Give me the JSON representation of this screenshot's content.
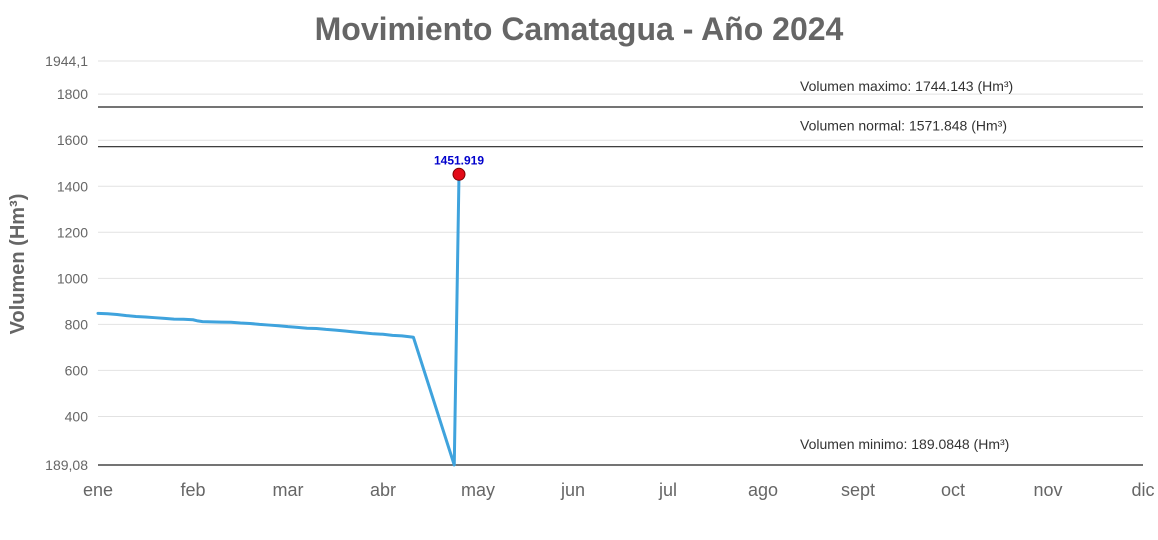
{
  "chart_data": {
    "type": "line",
    "title": "Movimiento Camatagua - Año 2024",
    "ylabel": "Volumen (Hm³)",
    "xlabel": "",
    "ylim": [
      189.08,
      1944.1
    ],
    "y_tick_labels": [
      {
        "value": 1944.1,
        "label": "1944,1"
      },
      {
        "value": 1800,
        "label": "1800"
      },
      {
        "value": 1600,
        "label": "1600"
      },
      {
        "value": 1400,
        "label": "1400"
      },
      {
        "value": 1200,
        "label": "1200"
      },
      {
        "value": 1000,
        "label": "1000"
      },
      {
        "value": 800,
        "label": "800"
      },
      {
        "value": 600,
        "label": "600"
      },
      {
        "value": 400,
        "label": "400"
      },
      {
        "value": 189.08,
        "label": "189,08"
      }
    ],
    "gridlines": [
      1944.1,
      1800,
      1600,
      1400,
      1200,
      1000,
      800,
      600,
      400
    ],
    "months": [
      "ene",
      "feb",
      "mar",
      "abr",
      "may",
      "jun",
      "jul",
      "ago",
      "sept",
      "oct",
      "nov",
      "dic"
    ],
    "grid": true,
    "series": [
      {
        "color": "#3fa3dd",
        "points": [
          [
            0,
            848
          ],
          [
            0.1,
            846
          ],
          [
            0.2,
            843
          ],
          [
            0.3,
            838
          ],
          [
            0.4,
            834
          ],
          [
            0.5,
            832
          ],
          [
            0.6,
            829
          ],
          [
            0.7,
            826
          ],
          [
            0.8,
            823
          ],
          [
            0.9,
            822
          ],
          [
            1.0,
            820
          ],
          [
            1.05,
            815
          ],
          [
            1.1,
            812
          ],
          [
            1.2,
            811
          ],
          [
            1.3,
            810
          ],
          [
            1.4,
            809
          ],
          [
            1.5,
            806
          ],
          [
            1.6,
            804
          ],
          [
            1.7,
            800
          ],
          [
            1.8,
            797
          ],
          [
            1.9,
            794
          ],
          [
            2.0,
            790
          ],
          [
            2.1,
            787
          ],
          [
            2.2,
            783
          ],
          [
            2.3,
            782
          ],
          [
            2.4,
            778
          ],
          [
            2.5,
            775
          ],
          [
            2.6,
            771
          ],
          [
            2.7,
            767
          ],
          [
            2.8,
            763
          ],
          [
            2.9,
            759
          ],
          [
            3.0,
            757
          ],
          [
            3.1,
            752
          ],
          [
            3.2,
            750
          ],
          [
            3.3,
            745
          ],
          [
            3.32,
            744
          ],
          [
            3.75,
            189.08
          ],
          [
            3.8,
            1451.919
          ]
        ]
      }
    ],
    "highlight_point": {
      "x": 3.8,
      "y": 1451.919,
      "label": "1451.919",
      "color": "#e30a18"
    },
    "reference_lines": [
      {
        "value": 1744.143,
        "label": "Volumen maximo: 1744.143 (Hm³)"
      },
      {
        "value": 1571.848,
        "label": "Volumen normal: 1571.848 (Hm³)"
      },
      {
        "value": 189.0848,
        "label": "Volumen minimo: 189.0848 (Hm³)"
      }
    ]
  }
}
